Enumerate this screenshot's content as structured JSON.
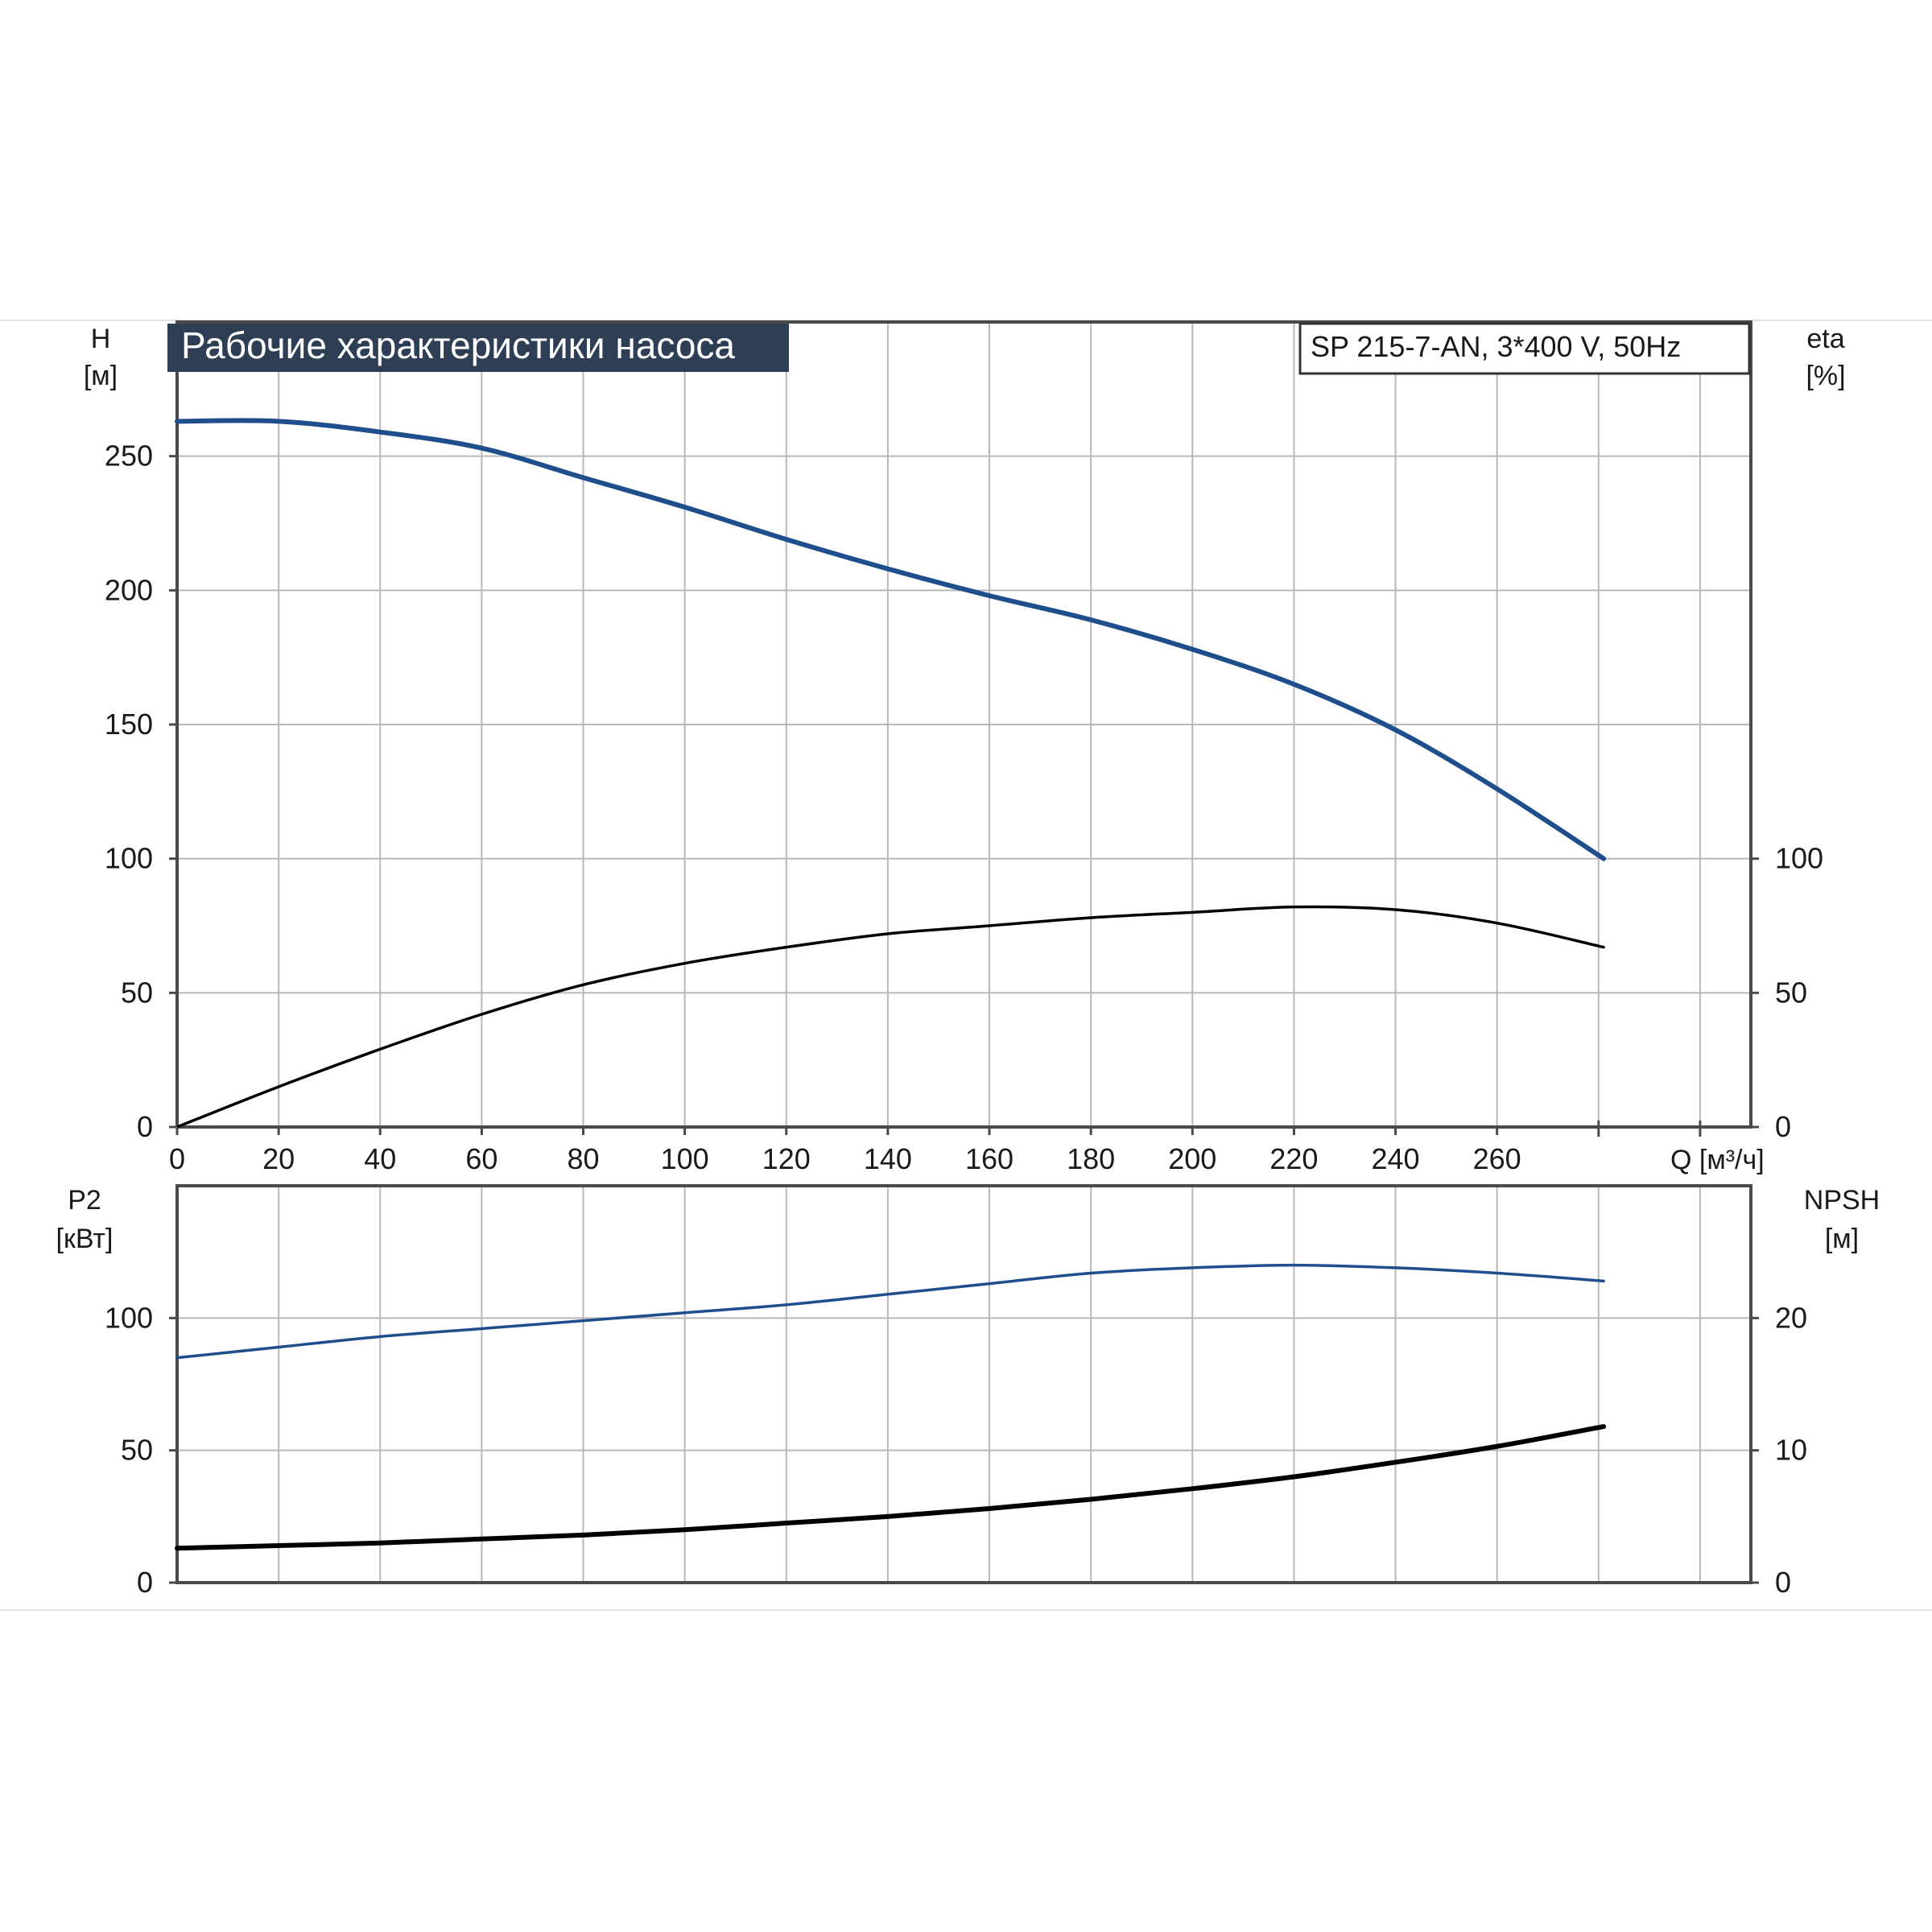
{
  "header": {
    "title": "Рабочие характеристики насоса",
    "model": "SP 215-7-AN, 3*400 V, 50Hz"
  },
  "colors": {
    "blue": "#1f4e8c",
    "black": "#000000",
    "title_bg": "#2e3f55",
    "grid": "#b8b8b8"
  },
  "axes": {
    "top_left": {
      "name": "H",
      "unit": "[м]",
      "ticks": [
        "0",
        "50",
        "100",
        "150",
        "200",
        "250"
      ]
    },
    "top_right": {
      "name": "eta",
      "unit": "[%]",
      "ticks": [
        "0",
        "50",
        "100"
      ]
    },
    "x": {
      "label": "Q [м³/ч]",
      "ticks": [
        "0",
        "20",
        "40",
        "60",
        "80",
        "100",
        "120",
        "140",
        "160",
        "180",
        "200",
        "220",
        "240",
        "260"
      ]
    },
    "bottom_left": {
      "name": "P2",
      "unit": "[кВт]",
      "ticks": [
        "0",
        "50",
        "100"
      ]
    },
    "bottom_right": {
      "name": "NPSH",
      "unit": "[м]",
      "ticks": [
        "0",
        "10",
        "20"
      ]
    }
  },
  "chart_data": [
    {
      "type": "line",
      "title": "Рабочие характеристики насоса",
      "xlabel": "Q [м³/ч]",
      "ylabel": "H [м]",
      "y2label": "eta [%]",
      "xlim": [
        0,
        310
      ],
      "ylim": [
        0,
        300
      ],
      "y2lim": [
        0,
        300
      ],
      "grid": true,
      "series": [
        {
          "axis": "left",
          "color": "#1f4e8c",
          "x": [
            0,
            20,
            40,
            60,
            80,
            100,
            120,
            140,
            160,
            180,
            200,
            220,
            240,
            260,
            281
          ],
          "values": [
            263,
            263,
            259,
            253,
            242,
            231,
            219,
            208,
            198,
            189,
            178,
            165,
            148,
            126,
            100
          ]
        },
        {
          "axis": "right",
          "color": "#000000",
          "x": [
            0,
            20,
            40,
            60,
            80,
            100,
            120,
            140,
            160,
            180,
            200,
            220,
            240,
            260,
            281
          ],
          "values": [
            0,
            15,
            29,
            42,
            53,
            61,
            67,
            72,
            75,
            78,
            80,
            82,
            81,
            76,
            67
          ]
        }
      ]
    },
    {
      "type": "line",
      "xlabel": "Q [м³/ч]",
      "ylabel": "P2 [кВт]",
      "y2label": "NPSH [м]",
      "xlim": [
        0,
        310
      ],
      "ylim": [
        0,
        150
      ],
      "y2lim": [
        0,
        30
      ],
      "grid": true,
      "series": [
        {
          "axis": "left",
          "color": "#1f4e8c",
          "x": [
            0,
            20,
            40,
            60,
            80,
            100,
            120,
            140,
            160,
            180,
            200,
            220,
            240,
            260,
            281
          ],
          "values": [
            85,
            89,
            93,
            96,
            99,
            102,
            105,
            109,
            113,
            117,
            119,
            120,
            119,
            117,
            114
          ]
        },
        {
          "axis": "right",
          "color": "#000000",
          "x": [
            0,
            20,
            40,
            60,
            80,
            100,
            120,
            140,
            160,
            180,
            200,
            220,
            240,
            260,
            281
          ],
          "values": [
            2.6,
            2.8,
            3.0,
            3.3,
            3.6,
            4.0,
            4.5,
            5.0,
            5.6,
            6.3,
            7.1,
            8.0,
            9.1,
            10.3,
            11.8
          ]
        }
      ]
    }
  ]
}
